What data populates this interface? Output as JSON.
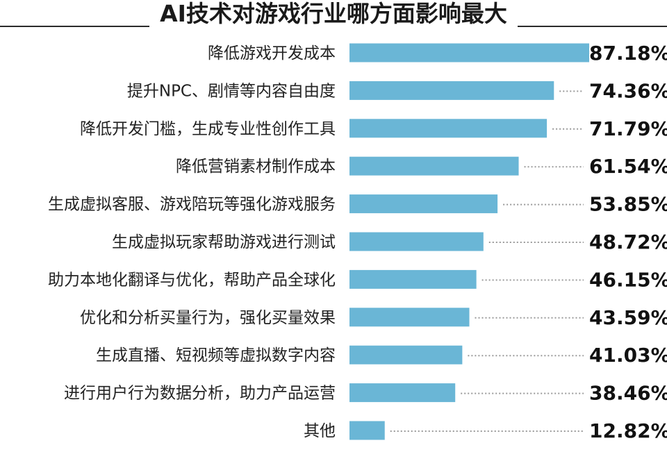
{
  "chart_data": {
    "type": "bar",
    "orientation": "horizontal",
    "title": "AI技术对游戏行业哪方面影响最大",
    "categories": [
      "降低游戏开发成本",
      "提升NPC、剧情等内容自由度",
      "降低开发门槛，生成专业性创作工具",
      "降低营销素材制作成本",
      "生成虚拟客服、游戏陪玩等强化游戏服务",
      "生成虚拟玩家帮助游戏进行测试",
      "助力本地化翻译与优化，帮助产品全球化",
      "优化和分析买量行为，强化买量效果",
      "生成直播、短视频等虚拟数字内容",
      "进行用户行为数据分析，助力产品运营",
      "其他"
    ],
    "values": [
      87.18,
      74.36,
      71.79,
      61.54,
      53.85,
      48.72,
      46.15,
      43.59,
      41.03,
      38.46,
      12.82
    ],
    "value_labels": [
      "87.18%",
      "74.36%",
      "71.79%",
      "61.54%",
      "53.85%",
      "48.72%",
      "46.15%",
      "43.59%",
      "41.03%",
      "38.46%",
      "12.82%"
    ],
    "xlabel": "",
    "ylabel": "",
    "unit": "%",
    "xlim": [
      0,
      100
    ],
    "grid": false,
    "legend": "none",
    "colors": {
      "bar": "#6ab6d6",
      "title_rule": "#2a2a2a",
      "dotted_leader": "#9a9a9a",
      "text": "#222222"
    }
  }
}
